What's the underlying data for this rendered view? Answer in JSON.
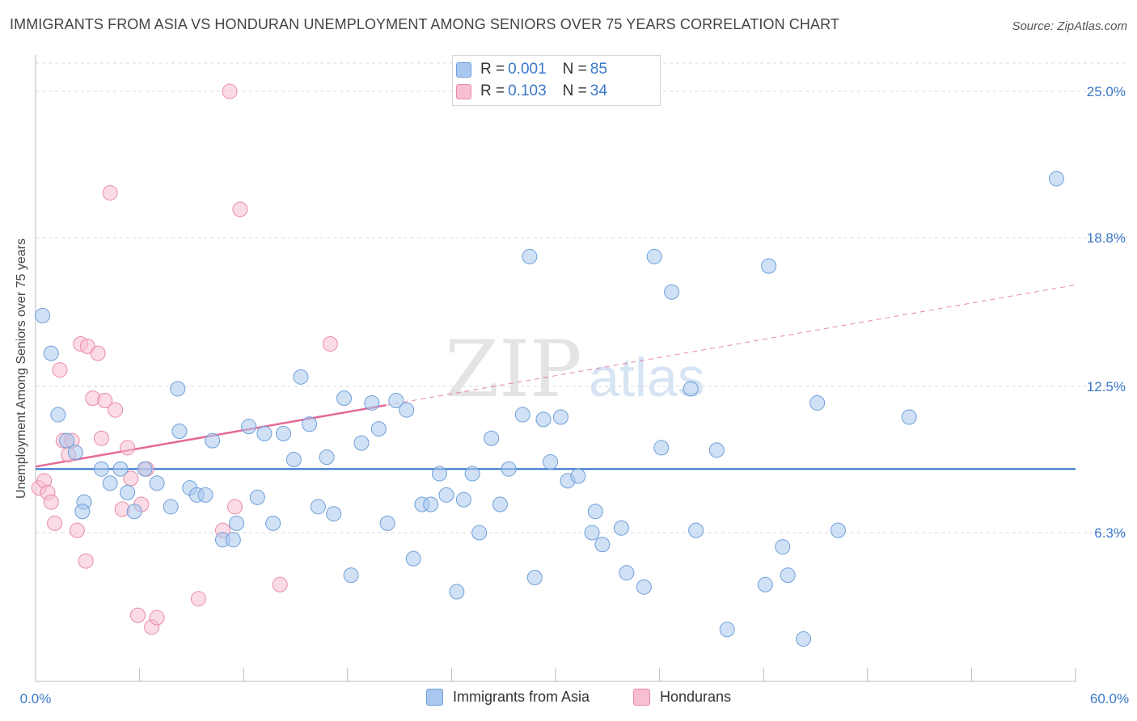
{
  "title": "IMMIGRANTS FROM ASIA VS HONDURAN UNEMPLOYMENT AMONG SENIORS OVER 75 YEARS CORRELATION CHART",
  "source": "Source: ZipAtlas.com",
  "watermark": {
    "zip": "ZIP",
    "atlas": "atlas"
  },
  "legend_top": {
    "rows": [
      {
        "r_label": "R = ",
        "r_value": "0.001",
        "n_label": "N = ",
        "n_value": "85",
        "color": "#a9c8ef"
      },
      {
        "r_label": "R = ",
        "r_value": "0.103",
        "n_label": "N = ",
        "n_value": "34",
        "color": "#f5b8cb"
      }
    ]
  },
  "colors": {
    "blue_fill": "#a9c8ef",
    "blue_stroke": "#6e9fd8",
    "blue_line": "#2f6fce",
    "pink_fill": "#f7bfd0",
    "pink_stroke": "#e98aa8",
    "pink_line": "#e36a97",
    "grid": "#d9d9d9",
    "tick_text": "#3a78c8",
    "axis": "#bbbbbb"
  },
  "chart_data": {
    "type": "scatter",
    "title": "IMMIGRANTS FROM ASIA VS HONDURAN UNEMPLOYMENT AMONG SENIORS OVER 75 YEARS CORRELATION CHART",
    "xlabel": "",
    "ylabel": "Unemployment Among Seniors over 75 years",
    "xlim": [
      0,
      60
    ],
    "ylim": [
      0,
      26.2
    ],
    "x_tick_labels": [
      "0.0%",
      "60.0%"
    ],
    "y_ticks": [
      6.3,
      12.5,
      18.8,
      25.0
    ],
    "y_tick_labels": [
      "6.3%",
      "12.5%",
      "18.8%",
      "25.0%"
    ],
    "grid": true,
    "legend_position": "bottom",
    "series": [
      {
        "name": "Immigrants from Asia",
        "r": 0.001,
        "n": 85,
        "trend": {
          "x": [
            0,
            60
          ],
          "y": [
            9.0,
            9.0
          ],
          "style": "solid"
        },
        "points": [
          [
            0.4,
            15.5,
            1
          ],
          [
            0.9,
            13.9,
            1
          ],
          [
            1.3,
            11.3,
            1
          ],
          [
            1.8,
            10.2,
            1
          ],
          [
            2.3,
            9.7,
            1
          ],
          [
            2.8,
            7.6,
            1
          ],
          [
            2.7,
            7.2,
            1
          ],
          [
            3.8,
            9.0,
            1
          ],
          [
            4.3,
            8.4,
            1
          ],
          [
            4.9,
            9.0,
            1
          ],
          [
            5.3,
            8.0,
            1
          ],
          [
            5.7,
            7.2,
            1
          ],
          [
            6.3,
            9.0,
            1
          ],
          [
            7.0,
            8.4,
            1
          ],
          [
            7.8,
            7.4,
            1
          ],
          [
            8.2,
            12.4,
            1
          ],
          [
            8.3,
            10.6,
            1
          ],
          [
            8.9,
            8.2,
            1
          ],
          [
            9.3,
            7.9,
            1
          ],
          [
            9.8,
            7.9,
            1
          ],
          [
            10.2,
            10.2,
            1
          ],
          [
            10.8,
            6.0,
            1
          ],
          [
            11.4,
            6.0,
            1
          ],
          [
            11.6,
            6.7,
            1
          ],
          [
            12.3,
            10.8,
            1
          ],
          [
            12.8,
            7.8,
            1
          ],
          [
            13.2,
            10.5,
            1
          ],
          [
            13.7,
            6.7,
            1
          ],
          [
            14.3,
            10.5,
            1
          ],
          [
            14.9,
            9.4,
            1
          ],
          [
            15.3,
            12.9,
            1
          ],
          [
            15.8,
            10.9,
            1
          ],
          [
            16.3,
            7.4,
            1
          ],
          [
            16.8,
            9.5,
            1
          ],
          [
            17.2,
            7.1,
            1
          ],
          [
            17.8,
            12.0,
            1
          ],
          [
            18.2,
            4.5,
            1
          ],
          [
            18.8,
            10.1,
            1
          ],
          [
            19.4,
            11.8,
            1
          ],
          [
            19.8,
            10.7,
            1
          ],
          [
            20.3,
            6.7,
            1
          ],
          [
            20.8,
            11.9,
            1
          ],
          [
            21.4,
            11.5,
            1
          ],
          [
            21.8,
            5.2,
            1
          ],
          [
            22.3,
            7.5,
            1
          ],
          [
            22.8,
            7.5,
            1
          ],
          [
            23.3,
            8.8,
            1
          ],
          [
            23.7,
            7.9,
            1
          ],
          [
            24.3,
            3.8,
            1
          ],
          [
            24.7,
            7.7,
            1
          ],
          [
            25.2,
            8.8,
            1
          ],
          [
            25.6,
            6.3,
            1
          ],
          [
            26.3,
            10.3,
            1
          ],
          [
            26.8,
            7.5,
            1
          ],
          [
            27.3,
            9.0,
            1
          ],
          [
            28.1,
            11.3,
            1
          ],
          [
            28.5,
            18.0,
            1
          ],
          [
            28.8,
            4.4,
            1
          ],
          [
            29.3,
            11.1,
            1
          ],
          [
            29.7,
            9.3,
            1
          ],
          [
            30.3,
            11.2,
            1
          ],
          [
            30.7,
            8.5,
            1
          ],
          [
            31.3,
            8.7,
            1
          ],
          [
            32.1,
            6.3,
            1
          ],
          [
            32.3,
            7.2,
            1
          ],
          [
            32.7,
            5.8,
            1
          ],
          [
            33.8,
            6.5,
            1
          ],
          [
            34.1,
            4.6,
            1
          ],
          [
            35.1,
            4.0,
            1
          ],
          [
            35.7,
            18.0,
            1
          ],
          [
            36.1,
            9.9,
            1
          ],
          [
            36.7,
            16.5,
            1
          ],
          [
            37.8,
            12.4,
            1
          ],
          [
            38.1,
            6.4,
            1
          ],
          [
            39.3,
            9.8,
            1
          ],
          [
            39.9,
            2.2,
            1
          ],
          [
            42.3,
            17.6,
            1
          ],
          [
            42.1,
            4.1,
            1
          ],
          [
            43.1,
            5.7,
            1
          ],
          [
            43.4,
            4.5,
            1
          ],
          [
            44.3,
            1.8,
            1
          ],
          [
            45.1,
            11.8,
            1
          ],
          [
            46.3,
            6.4,
            1
          ],
          [
            50.4,
            11.2,
            1
          ],
          [
            58.9,
            21.3,
            1
          ]
        ]
      },
      {
        "name": "Hondurans",
        "r": 0.103,
        "n": 34,
        "trend": {
          "x": [
            0,
            20.2
          ],
          "y": [
            9.1,
            11.7
          ],
          "style": "solid"
        },
        "trend_extension": {
          "x": [
            20.2,
            60
          ],
          "y": [
            11.7,
            16.8
          ],
          "style": "dashed"
        },
        "points": [
          [
            0.2,
            8.2,
            1
          ],
          [
            0.5,
            8.5,
            1
          ],
          [
            0.7,
            8.0,
            1
          ],
          [
            0.9,
            7.6,
            1
          ],
          [
            1.1,
            6.7,
            1
          ],
          [
            1.4,
            13.2,
            1
          ],
          [
            1.6,
            10.2,
            1
          ],
          [
            1.9,
            9.6,
            1
          ],
          [
            2.1,
            10.2,
            1
          ],
          [
            2.4,
            6.4,
            1
          ],
          [
            2.6,
            14.3,
            1
          ],
          [
            3.0,
            14.2,
            1
          ],
          [
            3.3,
            12.0,
            1
          ],
          [
            3.6,
            13.9,
            1
          ],
          [
            3.8,
            10.3,
            1
          ],
          [
            4.0,
            11.9,
            1
          ],
          [
            4.3,
            20.7,
            1
          ],
          [
            4.6,
            11.5,
            1
          ],
          [
            5.0,
            7.3,
            1
          ],
          [
            5.3,
            9.9,
            1
          ],
          [
            5.5,
            8.6,
            1
          ],
          [
            5.9,
            2.8,
            1
          ],
          [
            6.1,
            7.5,
            1
          ],
          [
            6.4,
            9.0,
            1
          ],
          [
            6.7,
            2.3,
            1
          ],
          [
            7.0,
            2.7,
            1
          ],
          [
            2.9,
            5.1,
            1
          ],
          [
            9.4,
            3.5,
            1
          ],
          [
            11.2,
            25.0,
            1
          ],
          [
            11.5,
            7.4,
            1
          ],
          [
            11.8,
            20.0,
            1
          ],
          [
            10.8,
            6.4,
            1
          ],
          [
            14.1,
            4.1,
            1
          ],
          [
            17.0,
            14.3,
            1
          ]
        ]
      }
    ]
  },
  "legend_bottom": {
    "items": [
      {
        "label": "Immigrants from Asia",
        "color": "#a9c8ef"
      },
      {
        "label": "Hondurans",
        "color": "#f7bfd0"
      }
    ]
  }
}
